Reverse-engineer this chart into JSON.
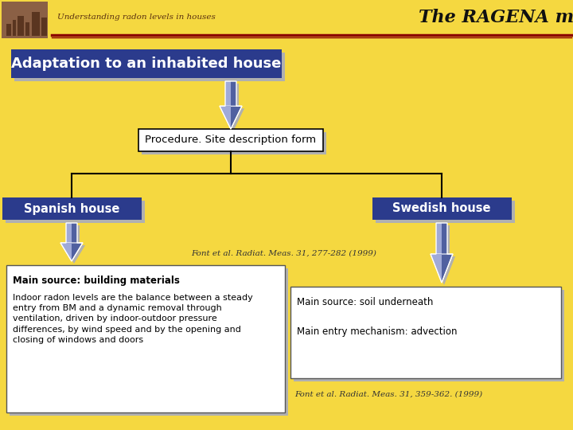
{
  "bg_color": "#F5D840",
  "header_line_color1": "#8B0000",
  "header_line_color2": "#8B0000",
  "header_subtitle": "Understanding radon levels in houses",
  "header_title": "The RAGENA model",
  "title_box_text": "Adaptation to an inhabited house",
  "title_box_bg": "#2B3B8C",
  "title_box_text_color": "#FFFFFF",
  "proc_box_text": "Procedure. Site description form",
  "proc_box_bg": "#FFFFFF",
  "proc_box_border": "#000000",
  "left_box_text": "Spanish house",
  "left_box_bg": "#2B3B8C",
  "left_box_text_color": "#FFFFFF",
  "right_box_text": "Swedish house",
  "right_box_bg": "#2B3B8C",
  "right_box_text_color": "#FFFFFF",
  "left_cite": "Font et al. Radiat. Meas. 31, 277-282 (1999)",
  "right_cite": "Font et al. Radiat. Meas. 31, 359-362. (1999)",
  "left_info_line1": "Main source: building materials",
  "left_info_para": "Indoor radon levels are the balance between a steady\nentry from BM and a dynamic removal through\nventilation, driven by indoor-outdoor pressure\ndifferences, by wind speed and by the opening and\nclosing of windows and doors",
  "right_info_line1": "Main source: soil underneath",
  "right_info_line2": "Main entry mechanism: advection",
  "info_box_bg": "#FFFFFF",
  "info_box_border": "#555555",
  "arrow_color_light": "#A0AAD8",
  "arrow_color_dark": "#5060A0",
  "line_color": "#000000",
  "shadow_color": "#B0B0B0",
  "img_color": "#8B6045"
}
